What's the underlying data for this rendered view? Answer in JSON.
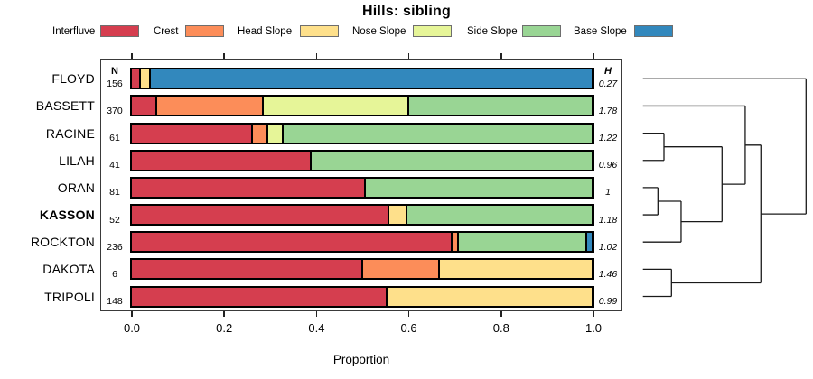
{
  "title": "Hills: sibling",
  "legend": [
    {
      "label": "Interfluve",
      "color": "#D53E4F"
    },
    {
      "label": "Crest",
      "color": "#FC8D59"
    },
    {
      "label": "Head Slope",
      "color": "#FEE08B"
    },
    {
      "label": "Nose Slope",
      "color": "#E6F598"
    },
    {
      "label": "Side Slope",
      "color": "#99D594"
    },
    {
      "label": "Base Slope",
      "color": "#3288BD"
    }
  ],
  "columns": {
    "n_header": "N",
    "h_header": "H"
  },
  "axis": {
    "xlabel": "Proportion",
    "tick_labels": [
      "0.0",
      "0.2",
      "0.4",
      "0.6",
      "0.8",
      "1.0"
    ],
    "tick_values": [
      0,
      0.2,
      0.4,
      0.6,
      0.8,
      1.0
    ]
  },
  "chart_data": {
    "type": "bar",
    "stacked": true,
    "orientation": "horizontal",
    "title": "Hills: sibling",
    "xlabel": "Proportion",
    "xlim": [
      0,
      1
    ],
    "grid": false,
    "legend_position": "top",
    "categories": [
      "FLOYD",
      "BASSETT",
      "RACINE",
      "LILAH",
      "ORAN",
      "KASSON",
      "ROCKTON",
      "DAKOTA",
      "TRIPOLI"
    ],
    "rows": [
      {
        "label": "FLOYD",
        "n": "156",
        "h": "0.27",
        "bold": false,
        "segments": [
          {
            "name": "Interfluve",
            "value": 0.02
          },
          {
            "name": "Head Slope",
            "value": 0.021
          },
          {
            "name": "Base Slope",
            "value": 0.959
          }
        ]
      },
      {
        "label": "BASSETT",
        "n": "370",
        "h": "1.78",
        "bold": false,
        "segments": [
          {
            "name": "Interfluve",
            "value": 0.055
          },
          {
            "name": "Crest",
            "value": 0.23
          },
          {
            "name": "Nose Slope",
            "value": 0.315
          },
          {
            "name": "Side Slope",
            "value": 0.4
          }
        ]
      },
      {
        "label": "RACINE",
        "n": "61",
        "h": "1.22",
        "bold": false,
        "segments": [
          {
            "name": "Interfluve",
            "value": 0.262
          },
          {
            "name": "Crest",
            "value": 0.033
          },
          {
            "name": "Nose Slope",
            "value": 0.033
          },
          {
            "name": "Side Slope",
            "value": 0.672
          }
        ]
      },
      {
        "label": "LILAH",
        "n": "41",
        "h": "0.96",
        "bold": false,
        "segments": [
          {
            "name": "Interfluve",
            "value": 0.39
          },
          {
            "name": "Side Slope",
            "value": 0.61
          }
        ]
      },
      {
        "label": "ORAN",
        "n": "81",
        "h": "1",
        "bold": false,
        "segments": [
          {
            "name": "Interfluve",
            "value": 0.506
          },
          {
            "name": "Side Slope",
            "value": 0.494
          }
        ]
      },
      {
        "label": "KASSON",
        "n": "52",
        "h": "1.18",
        "bold": true,
        "segments": [
          {
            "name": "Interfluve",
            "value": 0.558
          },
          {
            "name": "Head Slope",
            "value": 0.038
          },
          {
            "name": "Side Slope",
            "value": 0.404
          }
        ]
      },
      {
        "label": "ROCKTON",
        "n": "236",
        "h": "1.02",
        "bold": false,
        "segments": [
          {
            "name": "Interfluve",
            "value": 0.695
          },
          {
            "name": "Crest",
            "value": 0.013
          },
          {
            "name": "Side Slope",
            "value": 0.279
          },
          {
            "name": "Base Slope",
            "value": 0.013
          }
        ]
      },
      {
        "label": "DAKOTA",
        "n": "6",
        "h": "1.46",
        "bold": false,
        "segments": [
          {
            "name": "Interfluve",
            "value": 0.5
          },
          {
            "name": "Crest",
            "value": 0.167
          },
          {
            "name": "Head Slope",
            "value": 0.333
          }
        ]
      },
      {
        "label": "TRIPOLI",
        "n": "148",
        "h": "0.99",
        "bold": false,
        "segments": [
          {
            "name": "Interfluve",
            "value": 0.554
          },
          {
            "name": "Head Slope",
            "value": 0.446
          }
        ]
      }
    ]
  },
  "dendrogram": {
    "orientation": "right",
    "tree": {
      "height": 1.0,
      "children": [
        {
          "leaf": "FLOYD"
        },
        {
          "height": 0.723,
          "children": [
            {
              "height": 0.627,
              "children": [
                {
                  "leaf": "BASSETT"
                },
                {
                  "height": 0.485,
                  "children": [
                    {
                      "height": 0.129,
                      "children": [
                        {
                          "leaf": "RACINE"
                        },
                        {
                          "leaf": "LILAH"
                        }
                      ]
                    },
                    {
                      "height": 0.234,
                      "children": [
                        {
                          "height": 0.092,
                          "children": [
                            {
                              "leaf": "ORAN"
                            },
                            {
                              "leaf": "KASSON"
                            }
                          ]
                        },
                        {
                          "leaf": "ROCKTON"
                        }
                      ]
                    }
                  ]
                }
              ]
            },
            {
              "height": 0.175,
              "children": [
                {
                  "leaf": "DAKOTA"
                },
                {
                  "leaf": "TRIPOLI"
                }
              ]
            }
          ]
        }
      ]
    }
  }
}
